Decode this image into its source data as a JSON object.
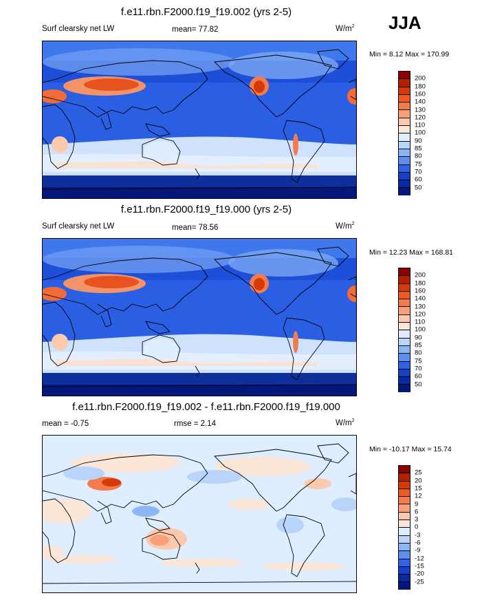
{
  "season": "JJA",
  "panels": [
    {
      "title": "f.e11.rbn.F2000.f19_f19.002 (yrs 2-5)",
      "left_label": "Surf clearsky net LW",
      "center_label": "mean=  77.82",
      "units": "W/m",
      "units_sup": "2",
      "minmax": "Min =   8.12 Max = 170.99",
      "colorbar": {
        "labels": [
          "200",
          "180",
          "160",
          "140",
          "130",
          "120",
          "110",
          "100",
          "90",
          "85",
          "80",
          "75",
          "70",
          "60",
          "50"
        ],
        "colors": [
          "#8b0000",
          "#b22000",
          "#d73a08",
          "#f05a22",
          "#f47c4c",
          "#f8a07a",
          "#fbc9ad",
          "#fbe6d8",
          "#dfeefe",
          "#b9d4fb",
          "#8bb6f5",
          "#5d8ff0",
          "#3063e6",
          "#1640c9",
          "#0a2aa2",
          "#05177a"
        ]
      },
      "map_style": "full"
    },
    {
      "title": "f.e11.rbn.F2000.f19_f19.000 (yrs 2-5)",
      "left_label": "Surf clearsky net LW",
      "center_label": "mean=  78.56",
      "units": "W/m",
      "units_sup": "2",
      "minmax": "Min =  12.23 Max = 168.81",
      "colorbar": {
        "labels": [
          "200",
          "180",
          "160",
          "140",
          "130",
          "120",
          "110",
          "100",
          "90",
          "85",
          "80",
          "75",
          "70",
          "60",
          "50"
        ],
        "colors": [
          "#8b0000",
          "#b22000",
          "#d73a08",
          "#f05a22",
          "#f47c4c",
          "#f8a07a",
          "#fbc9ad",
          "#fbe6d8",
          "#dfeefe",
          "#b9d4fb",
          "#8bb6f5",
          "#5d8ff0",
          "#3063e6",
          "#1640c9",
          "#0a2aa2",
          "#05177a"
        ]
      },
      "map_style": "full"
    },
    {
      "title": "f.e11.rbn.F2000.f19_f19.002 - f.e11.rbn.F2000.f19_f19.000",
      "left_label": "mean =  -0.75",
      "center_label": "rmse =   2.14",
      "units": "W/m",
      "units_sup": "2",
      "minmax": "Min = -10.17 Max =  15.74",
      "colorbar": {
        "labels": [
          "25",
          "20",
          "15",
          "12",
          "9",
          "6",
          "3",
          "0",
          "-3",
          "-6",
          "-9",
          "-12",
          "-15",
          "-20",
          "-25"
        ],
        "colors": [
          "#8b0000",
          "#b22000",
          "#d73a08",
          "#f05a22",
          "#f47c4c",
          "#f8a07a",
          "#fbc9ad",
          "#fbe6d8",
          "#dfeefe",
          "#b9d4fb",
          "#8bb6f5",
          "#5d8ff0",
          "#3063e6",
          "#1640c9",
          "#0a2aa2",
          "#05177a"
        ]
      },
      "map_style": "diff"
    }
  ]
}
